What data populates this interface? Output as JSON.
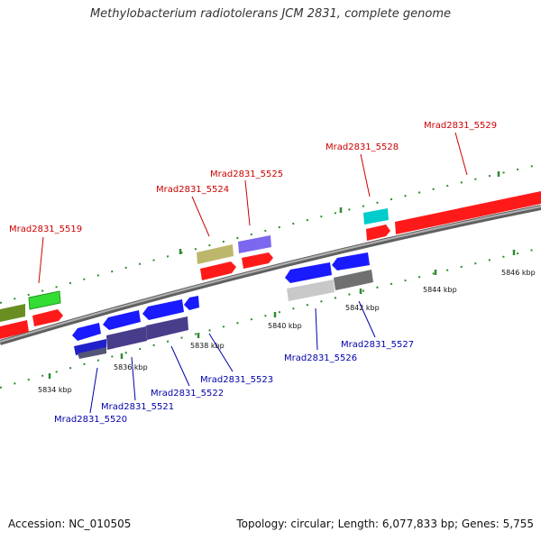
{
  "title": "Methylobacterium radiotolerans JCM 2831, complete genome",
  "footer": {
    "accession": "Accession: NC_010505",
    "topology": "Topology: circular; Length: 6,077,833 bp; Genes: 5,755"
  },
  "colors": {
    "forward_label": "#cc0000",
    "reverse_label": "#0000aa",
    "tick": "#2e8b2e",
    "backbone": "#808080"
  },
  "kbp_labels": [
    "5834 kbp",
    "5836 kbp",
    "5838 kbp",
    "5840 kbp",
    "5842 kbp",
    "5844 kbp",
    "5846 kbp"
  ],
  "forward_genes": [
    "Mrad2831_5519",
    "Mrad2831_5524",
    "Mrad2831_5525",
    "Mrad2831_5528",
    "Mrad2831_5529"
  ],
  "reverse_genes": [
    "Mrad2831_5520",
    "Mrad2831_5521",
    "Mrad2831_5522",
    "Mrad2831_5523",
    "Mrad2831_5526",
    "Mrad2831_5527"
  ]
}
